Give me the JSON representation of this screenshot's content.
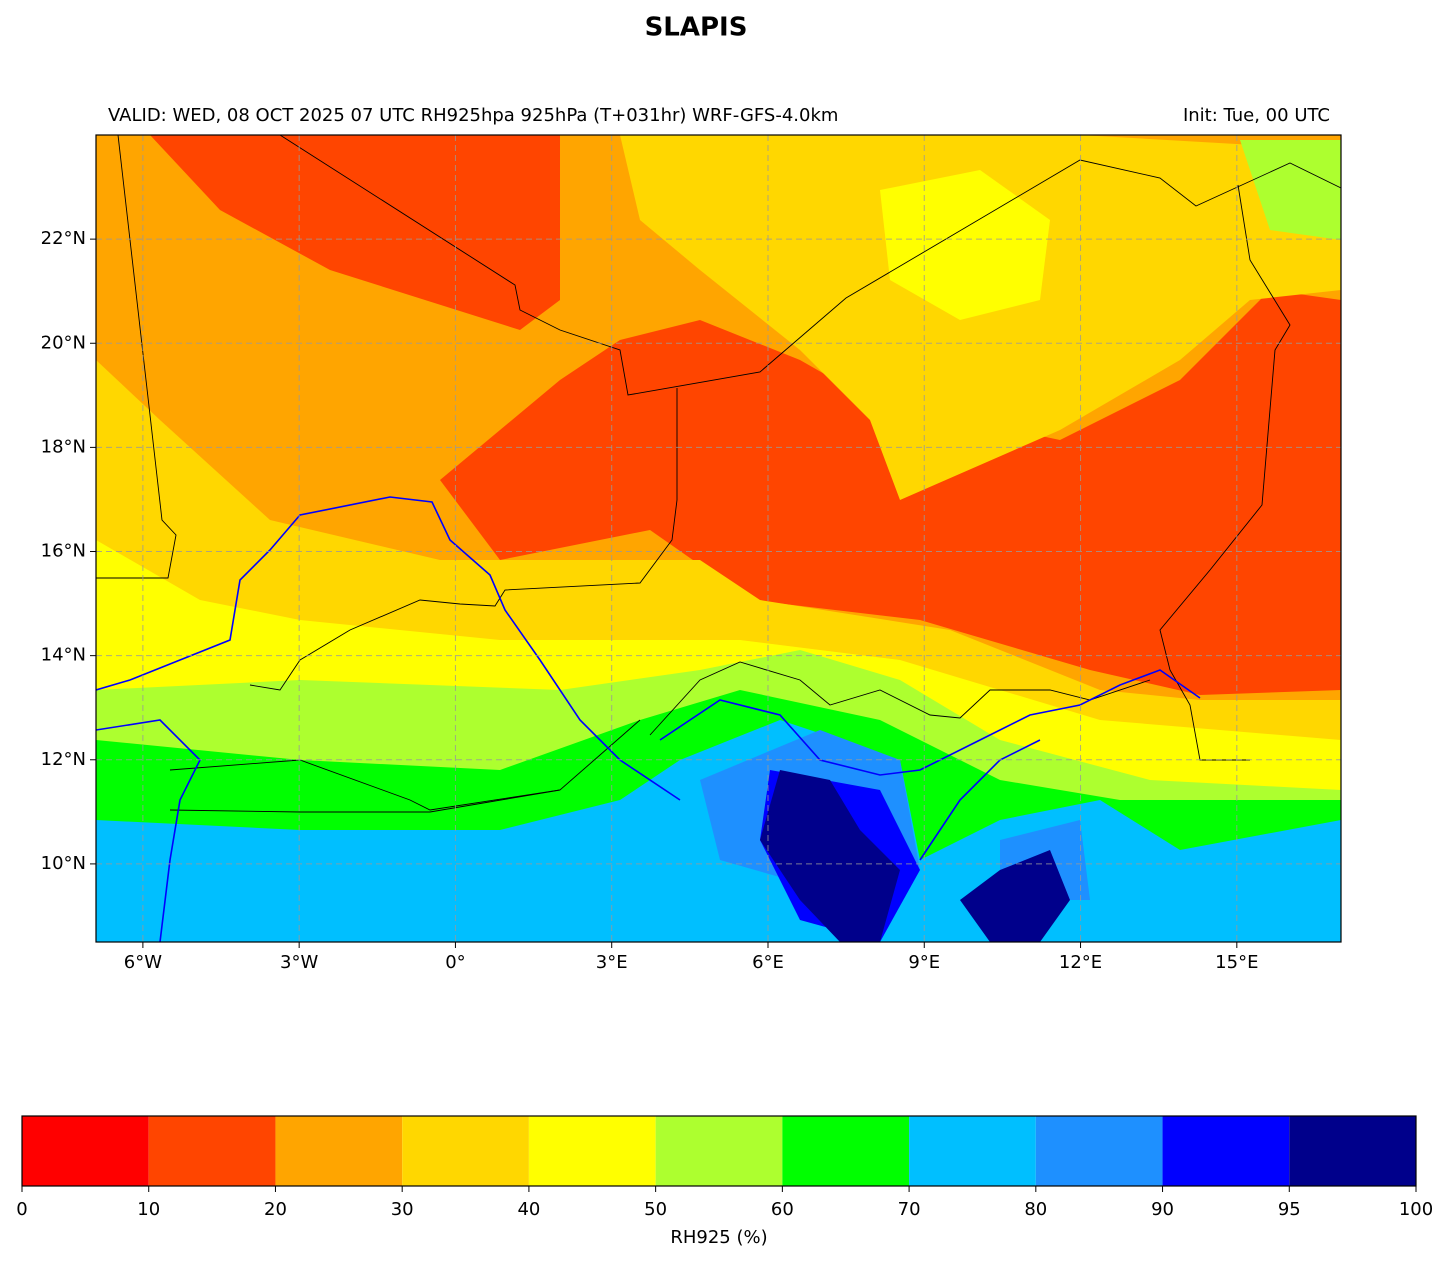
{
  "title": "SLAPIS",
  "subtitle_left": "VALID: WED, 08 OCT 2025 07 UTC  RH925hpa 925hPa (T+031hr) WRF-GFS-4.0km",
  "subtitle_right": "Init: Tue, 00 UTC",
  "map": {
    "xlim": [
      -6.9,
      17
    ],
    "ylim": [
      8.5,
      24
    ],
    "grid": true,
    "xticks": [
      {
        "value": -6,
        "label": "6°W"
      },
      {
        "value": -3,
        "label": "3°W"
      },
      {
        "value": 0,
        "label": "0°"
      },
      {
        "value": 3,
        "label": "3°E"
      },
      {
        "value": 6,
        "label": "6°E"
      },
      {
        "value": 9,
        "label": "9°E"
      },
      {
        "value": 12,
        "label": "12°E"
      },
      {
        "value": 15,
        "label": "15°E"
      }
    ],
    "yticks": [
      {
        "value": 10,
        "label": "10°N"
      },
      {
        "value": 12,
        "label": "12°N"
      },
      {
        "value": 14,
        "label": "14°N"
      },
      {
        "value": 16,
        "label": "16°N"
      },
      {
        "value": 18,
        "label": "18°N"
      },
      {
        "value": 20,
        "label": "20°N"
      },
      {
        "value": 22,
        "label": "22°N"
      }
    ]
  },
  "colorbar": {
    "label": "RH925 (%)",
    "boundaries": [
      0,
      10,
      20,
      30,
      40,
      50,
      60,
      70,
      80,
      90,
      95,
      100
    ],
    "colors": [
      "#ff0000",
      "#ff4500",
      "#ffa500",
      "#ffd700",
      "#ffff00",
      "#adff2f",
      "#00ff00",
      "#00bfff",
      "#1e90ff",
      "#0000ff",
      "#00008b"
    ]
  }
}
